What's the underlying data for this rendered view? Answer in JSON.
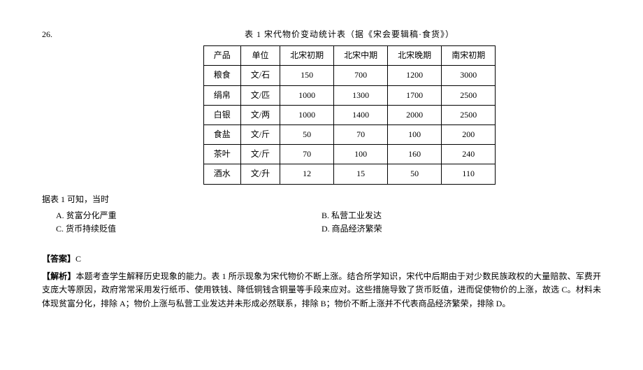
{
  "question_number": "26.",
  "table_title": "表 1  宋代物价变动统计表（据《宋会要辑稿·食货》）",
  "table": {
    "columns": [
      "产品",
      "单位",
      "北宋初期",
      "北宋中期",
      "北宋晚期",
      "南宋初期"
    ],
    "rows": [
      [
        "粮食",
        "文/石",
        "150",
        "700",
        "1200",
        "3000"
      ],
      [
        "绢帛",
        "文/匹",
        "1000",
        "1300",
        "1700",
        "2500"
      ],
      [
        "白银",
        "文/两",
        "1000",
        "1400",
        "2000",
        "2500"
      ],
      [
        "食盐",
        "文/斤",
        "50",
        "70",
        "100",
        "200"
      ],
      [
        "茶叶",
        "文/斤",
        "70",
        "100",
        "160",
        "240"
      ],
      [
        "酒水",
        "文/升",
        "12",
        "15",
        "50",
        "110"
      ]
    ]
  },
  "stem": "据表 1 可知，当时",
  "options": {
    "A": "A. 贫富分化严重",
    "B": "B. 私营工业发达",
    "C": "C. 货币持续贬值",
    "D": "D. 商品经济繁荣"
  },
  "answer_label": "【答案】",
  "answer_value": "C",
  "analysis_label": "【解析】",
  "analysis_text": "本题考查学生解释历史现象的能力。表 1 所示现象为宋代物价不断上涨。结合所学知识，宋代中后期由于对少数民族政权的大量赔款、军费开支庞大等原因，政府常常采用发行纸币、使用铁钱、降低铜钱含铜量等手段来应对。这些措施导致了货币贬值，进而促使物价的上涨，故选 C。材料未体现贫富分化，排除 A；物价上涨与私营工业发达并未形成必然联系，排除 B；物价不断上涨并不代表商品经济繁荣，排除 D。"
}
